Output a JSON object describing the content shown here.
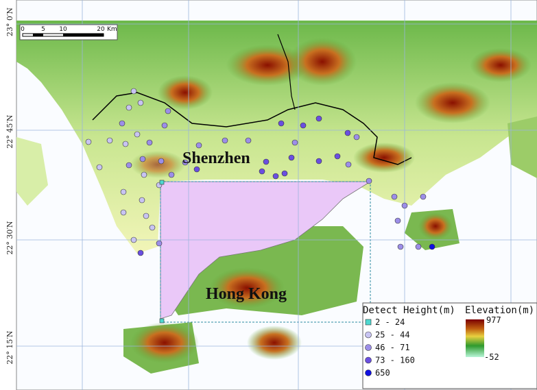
{
  "map": {
    "latitude_labels": [
      "23° 0′N",
      "22° 45′N",
      "22° 30′N",
      "22° 15′N"
    ],
    "scale_bar": {
      "ticks": [
        "0",
        "5",
        "10",
        "20"
      ],
      "unit": "Km"
    },
    "places": [
      "Shenzhen",
      "Hong Kong"
    ],
    "legend": {
      "detect_height": {
        "title": "Detect Height(m)",
        "classes": [
          {
            "label": "2 - 24",
            "color": "#4fd8d0"
          },
          {
            "label": "25 - 44",
            "color": "#c8c4f2"
          },
          {
            "label": "46 - 71",
            "color": "#9c8ee8"
          },
          {
            "label": "73 - 160",
            "color": "#6a4fe0"
          },
          {
            "label": "650",
            "color": "#1010e0"
          }
        ]
      },
      "elevation": {
        "title": "Elevation(m)",
        "max": "977",
        "min": "-52"
      }
    }
  }
}
